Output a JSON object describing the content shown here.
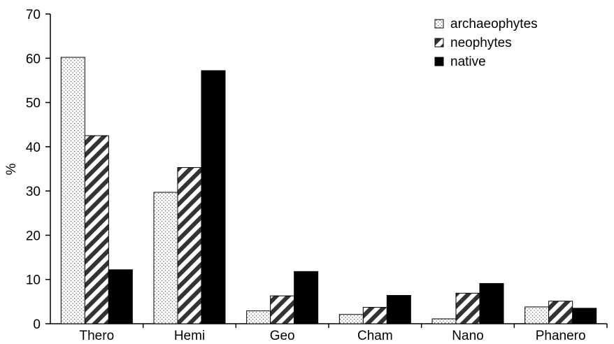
{
  "chart_data": {
    "type": "bar",
    "title": "",
    "xlabel": "",
    "ylabel": "%",
    "ylim": [
      0,
      70
    ],
    "yticks": [
      0,
      10,
      20,
      30,
      40,
      50,
      60,
      70
    ],
    "grid": false,
    "legend_position": "top-right",
    "categories": [
      "Thero",
      "Hemi",
      "Geo",
      "Cham",
      "Nano",
      "Phanero"
    ],
    "series": [
      {
        "name": "archaeophytes",
        "pattern": "dotted",
        "color": "#000000",
        "values": [
          60.2,
          29.7,
          2.9,
          2.1,
          1.1,
          3.8
        ]
      },
      {
        "name": "neophytes",
        "pattern": "diagonal-stripes",
        "color": "#000000",
        "values": [
          42.5,
          35.3,
          6.3,
          3.7,
          6.9,
          5.1
        ]
      },
      {
        "name": "native",
        "pattern": "solid",
        "color": "#000000",
        "values": [
          12.2,
          57.2,
          11.8,
          6.4,
          9.1,
          3.5
        ]
      }
    ]
  }
}
